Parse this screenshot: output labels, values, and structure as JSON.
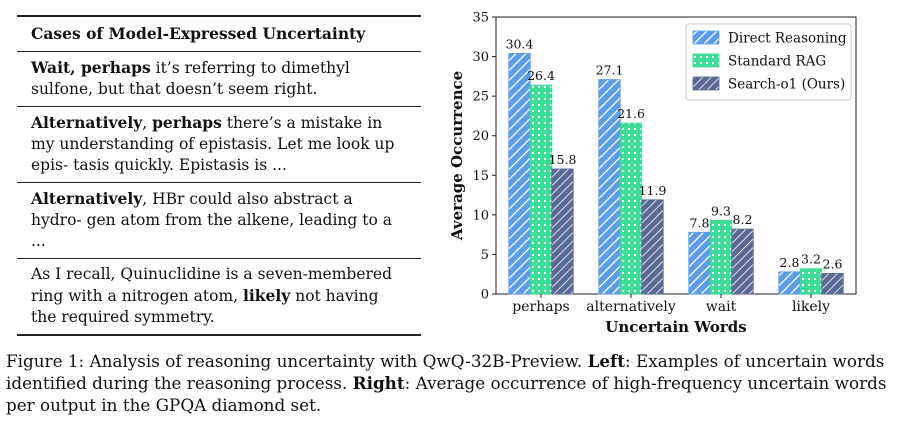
{
  "table": {
    "header": "Cases of Model-Expressed Uncertainty",
    "cases": [
      [
        {
          "t": "Wait, perhaps",
          "b": true
        },
        {
          "t": " it’s referring to dimethyl sulfone, but that doesn’t seem right.",
          "b": false
        }
      ],
      [
        {
          "t": "Alternatively",
          "b": true
        },
        {
          "t": ", ",
          "b": false
        },
        {
          "t": "perhaps",
          "b": true
        },
        {
          "t": " there’s a mistake in my understanding of epistasis. Let me look up epis- tasis quickly. Epistasis is ...",
          "b": false
        }
      ],
      [
        {
          "t": "Alternatively",
          "b": true
        },
        {
          "t": ", HBr could also abstract a hydro- gen atom from the alkene, leading to a ...",
          "b": false
        }
      ],
      [
        {
          "t": "As I recall, Quinuclidine is a seven-membered ring with a nitrogen atom, ",
          "b": false
        },
        {
          "t": "likely",
          "b": true
        },
        {
          "t": " not having the required symmetry.",
          "b": false
        }
      ]
    ]
  },
  "chart_data": {
    "type": "bar",
    "categories": [
      "perhaps",
      "alternatively",
      "wait",
      "likely"
    ],
    "series": [
      {
        "name": "Direct Reasoning",
        "values": [
          30.4,
          27.1,
          7.8,
          2.8
        ],
        "color": "#5b9de8",
        "pattern": "diagonal-hatch"
      },
      {
        "name": "Standard RAG",
        "values": [
          26.4,
          21.6,
          9.3,
          3.2
        ],
        "color": "#3ddc97",
        "pattern": "dots"
      },
      {
        "name": "Search-o1 (Ours)",
        "values": [
          15.8,
          11.9,
          8.2,
          2.6
        ],
        "color": "#5b6a94",
        "pattern": "diagonal-hatch"
      }
    ],
    "value_labels": [
      [
        "30.4",
        "27.1",
        "7.8",
        "2.8"
      ],
      [
        "26.4",
        "21.6",
        "9.3",
        "3.2"
      ],
      [
        "15.8",
        "11.9",
        "8.2",
        "2.6"
      ]
    ],
    "xlabel": "Uncertain Words",
    "ylabel": "Average Occurrence",
    "ylim": [
      0,
      35
    ],
    "yticks": [
      0,
      5,
      10,
      15,
      20,
      25,
      30,
      35
    ],
    "ytick_labels": [
      "0",
      "5",
      "10",
      "15",
      "20",
      "25",
      "30",
      "35"
    ],
    "grid": false,
    "legend": "top-right"
  },
  "caption": [
    {
      "t": "Figure 1: Analysis of reasoning uncertainty with QwQ-32B-Preview. ",
      "b": false
    },
    {
      "t": "Left",
      "b": true
    },
    {
      "t": ": Examples of uncertain words identified during the reasoning process. ",
      "b": false
    },
    {
      "t": "Right",
      "b": true
    },
    {
      "t": ": Average occurrence of high-frequency uncertain words per output in the GPQA diamond set.",
      "b": false
    }
  ]
}
